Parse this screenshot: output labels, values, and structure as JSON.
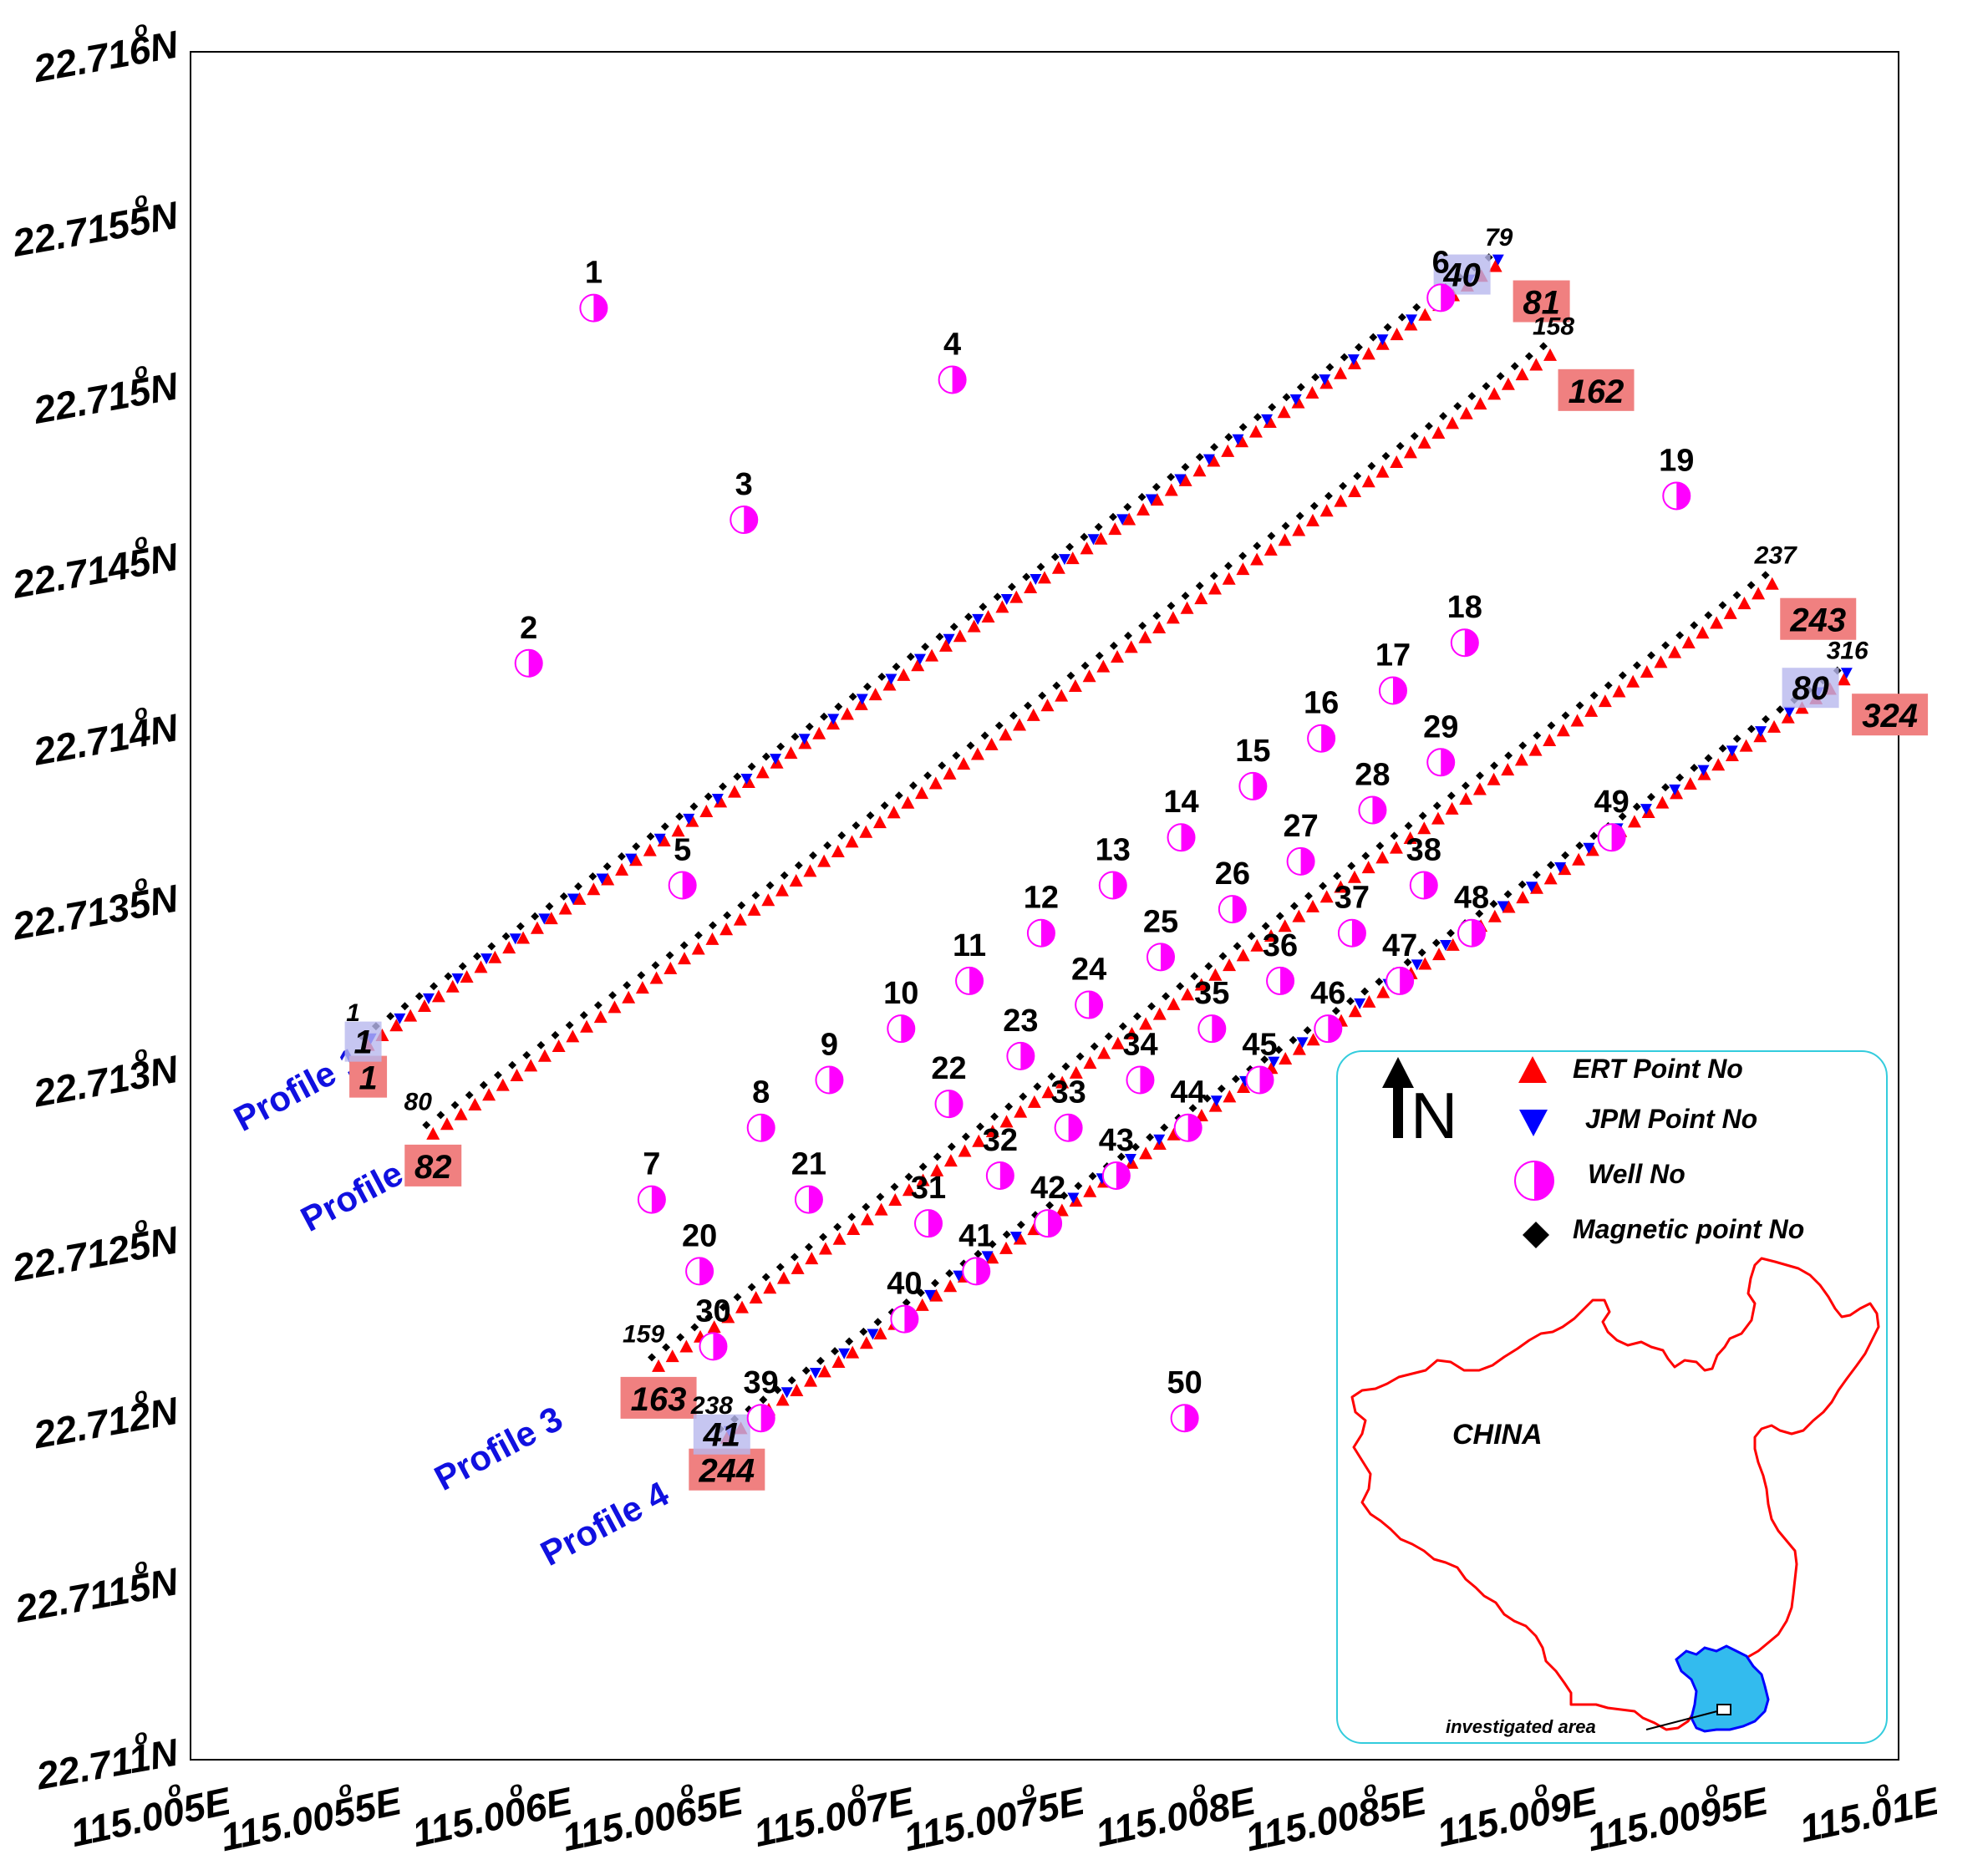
{
  "axes": {
    "y_ticks": [
      {
        "value": 22.711,
        "label": "22.711",
        "suffix": "N"
      },
      {
        "value": 22.7115,
        "label": "22.7115",
        "suffix": "N"
      },
      {
        "value": 22.712,
        "label": "22.712",
        "suffix": "N"
      },
      {
        "value": 22.7125,
        "label": "22.7125",
        "suffix": "N"
      },
      {
        "value": 22.713,
        "label": "22.713",
        "suffix": "N"
      },
      {
        "value": 22.7135,
        "label": "22.7135",
        "suffix": "N"
      },
      {
        "value": 22.714,
        "label": "22.714",
        "suffix": "N"
      },
      {
        "value": 22.7145,
        "label": "22.7145",
        "suffix": "N"
      },
      {
        "value": 22.715,
        "label": "22.715",
        "suffix": "N"
      },
      {
        "value": 22.7155,
        "label": "22.7155",
        "suffix": "N"
      },
      {
        "value": 22.716,
        "label": "22.716",
        "suffix": "N"
      }
    ],
    "x_ticks": [
      {
        "value": 115.005,
        "label": "115.005",
        "suffix": "E"
      },
      {
        "value": 115.0055,
        "label": "115.0055",
        "suffix": "E"
      },
      {
        "value": 115.006,
        "label": "115.006",
        "suffix": "E"
      },
      {
        "value": 115.0065,
        "label": "115.0065",
        "suffix": "E"
      },
      {
        "value": 115.007,
        "label": "115.007",
        "suffix": "E"
      },
      {
        "value": 115.0075,
        "label": "115.0075",
        "suffix": "E"
      },
      {
        "value": 115.008,
        "label": "115.008",
        "suffix": "E"
      },
      {
        "value": 115.0085,
        "label": "115.0085",
        "suffix": "E"
      },
      {
        "value": 115.009,
        "label": "115.009",
        "suffix": "E"
      },
      {
        "value": 115.0095,
        "label": "115.0095",
        "suffix": "E"
      },
      {
        "value": 115.01,
        "label": "115.01",
        "suffix": "E"
      }
    ],
    "degree_symbol": "o",
    "x_range": [
      115.005,
      115.01
    ],
    "y_range": [
      22.711,
      22.716
    ]
  },
  "profiles": [
    {
      "name": "Profile 1",
      "start_lon": 115.00552,
      "start_lat": 22.71309,
      "end_lon": 115.00882,
      "end_lat": 22.71537,
      "mag_start": "1",
      "mag_end": "79",
      "ert_start": "1",
      "ert_end": "81",
      "jpm_start": "1",
      "jpm_end": "40"
    },
    {
      "name": "Profile 2",
      "start_lon": 115.00571,
      "start_lat": 22.71283,
      "end_lon": 115.00898,
      "end_lat": 22.71511,
      "mag_start": "80",
      "mag_end": "158",
      "ert_start": "82",
      "ert_end": "162",
      "jpm_start": "",
      "jpm_end": ""
    },
    {
      "name": "Profile 3",
      "start_lon": 115.00637,
      "start_lat": 22.71215,
      "end_lon": 115.00963,
      "end_lat": 22.71444,
      "mag_start": "159",
      "mag_end": "237",
      "ert_start": "163",
      "ert_end": "243",
      "jpm_start": "",
      "jpm_end": ""
    },
    {
      "name": "Profile 4",
      "start_lon": 115.00657,
      "start_lat": 22.71194,
      "end_lon": 115.00984,
      "end_lat": 22.71416,
      "mag_start": "238",
      "mag_end": "316",
      "ert_start": "244",
      "ert_end": "324",
      "jpm_start": "41",
      "jpm_end": "80"
    }
  ],
  "wells": [
    {
      "id": "1",
      "lon": 115.00618,
      "lat": 22.71525
    },
    {
      "id": "2",
      "lon": 115.00599,
      "lat": 22.71421
    },
    {
      "id": "3",
      "lon": 115.00662,
      "lat": 22.71463
    },
    {
      "id": "4",
      "lon": 115.00723,
      "lat": 22.71504
    },
    {
      "id": "5",
      "lon": 115.00644,
      "lat": 22.71356
    },
    {
      "id": "6",
      "lon": 115.00866,
      "lat": 22.71528
    },
    {
      "id": "7",
      "lon": 115.00635,
      "lat": 22.71264
    },
    {
      "id": "8",
      "lon": 115.00667,
      "lat": 22.71285
    },
    {
      "id": "9",
      "lon": 115.00687,
      "lat": 22.71299
    },
    {
      "id": "10",
      "lon": 115.00708,
      "lat": 22.71314
    },
    {
      "id": "11",
      "lon": 115.00728,
      "lat": 22.71328
    },
    {
      "id": "12",
      "lon": 115.00749,
      "lat": 22.71342
    },
    {
      "id": "13",
      "lon": 115.0077,
      "lat": 22.71356
    },
    {
      "id": "14",
      "lon": 115.0079,
      "lat": 22.7137
    },
    {
      "id": "15",
      "lon": 115.00811,
      "lat": 22.71385
    },
    {
      "id": "16",
      "lon": 115.00831,
      "lat": 22.71399
    },
    {
      "id": "17",
      "lon": 115.00852,
      "lat": 22.71413
    },
    {
      "id": "18",
      "lon": 115.00873,
      "lat": 22.71427
    },
    {
      "id": "19",
      "lon": 115.00935,
      "lat": 22.7147
    },
    {
      "id": "20",
      "lon": 115.00649,
      "lat": 22.71243
    },
    {
      "id": "21",
      "lon": 115.00681,
      "lat": 22.71264
    },
    {
      "id": "22",
      "lon": 115.00722,
      "lat": 22.71292
    },
    {
      "id": "23",
      "lon": 115.00743,
      "lat": 22.71306
    },
    {
      "id": "24",
      "lon": 115.00763,
      "lat": 22.71321
    },
    {
      "id": "25",
      "lon": 115.00784,
      "lat": 22.71335
    },
    {
      "id": "26",
      "lon": 115.00805,
      "lat": 22.71349
    },
    {
      "id": "27",
      "lon": 115.00825,
      "lat": 22.71363
    },
    {
      "id": "28",
      "lon": 115.00846,
      "lat": 22.71378
    },
    {
      "id": "29",
      "lon": 115.00866,
      "lat": 22.71392
    },
    {
      "id": "30",
      "lon": 115.00653,
      "lat": 22.71221
    },
    {
      "id": "31",
      "lon": 115.00716,
      "lat": 22.71257
    },
    {
      "id": "32",
      "lon": 115.00737,
      "lat": 22.71271
    },
    {
      "id": "33",
      "lon": 115.00757,
      "lat": 22.71285
    },
    {
      "id": "34",
      "lon": 115.00778,
      "lat": 22.71299
    },
    {
      "id": "35",
      "lon": 115.00799,
      "lat": 22.71314
    },
    {
      "id": "36",
      "lon": 115.00819,
      "lat": 22.71328
    },
    {
      "id": "37",
      "lon": 115.0084,
      "lat": 22.71342
    },
    {
      "id": "38",
      "lon": 115.00861,
      "lat": 22.71356
    },
    {
      "id": "39",
      "lon": 115.00667,
      "lat": 22.712
    },
    {
      "id": "40",
      "lon": 115.00709,
      "lat": 22.71229
    },
    {
      "id": "41",
      "lon": 115.0073,
      "lat": 22.71243
    },
    {
      "id": "42",
      "lon": 115.00751,
      "lat": 22.71257
    },
    {
      "id": "43",
      "lon": 115.00771,
      "lat": 22.71271
    },
    {
      "id": "44",
      "lon": 115.00792,
      "lat": 22.71285
    },
    {
      "id": "45",
      "lon": 115.00813,
      "lat": 22.71299
    },
    {
      "id": "46",
      "lon": 115.00833,
      "lat": 22.71314
    },
    {
      "id": "47",
      "lon": 115.00854,
      "lat": 22.71328
    },
    {
      "id": "48",
      "lon": 115.00875,
      "lat": 22.71342
    },
    {
      "id": "49",
      "lon": 115.00916,
      "lat": 22.7137
    },
    {
      "id": "50",
      "lon": 115.00791,
      "lat": 22.712
    }
  ],
  "legend": {
    "north_label": "N",
    "items": [
      {
        "label": "ERT Point No",
        "symbol": "ert-triangle"
      },
      {
        "label": "JPM Point No",
        "symbol": "jpm-triangle"
      },
      {
        "label": "Well No",
        "symbol": "well-circle"
      },
      {
        "label": "Magnetic point No",
        "symbol": "magnetic-diamond"
      }
    ],
    "country_label": "CHINA",
    "area_label": "investigated area"
  },
  "colors": {
    "ert": "#ff0000",
    "jpm": "#0000ff",
    "magnetic": "#000000",
    "well": "#ff00ff",
    "profile_label": "#1010e0",
    "ert_box": "#f08080",
    "jpm_box": "#b8b8ee",
    "legend_border": "#33ccdd",
    "china_outline": "#ff0000",
    "province_fill": "#33bbee"
  }
}
